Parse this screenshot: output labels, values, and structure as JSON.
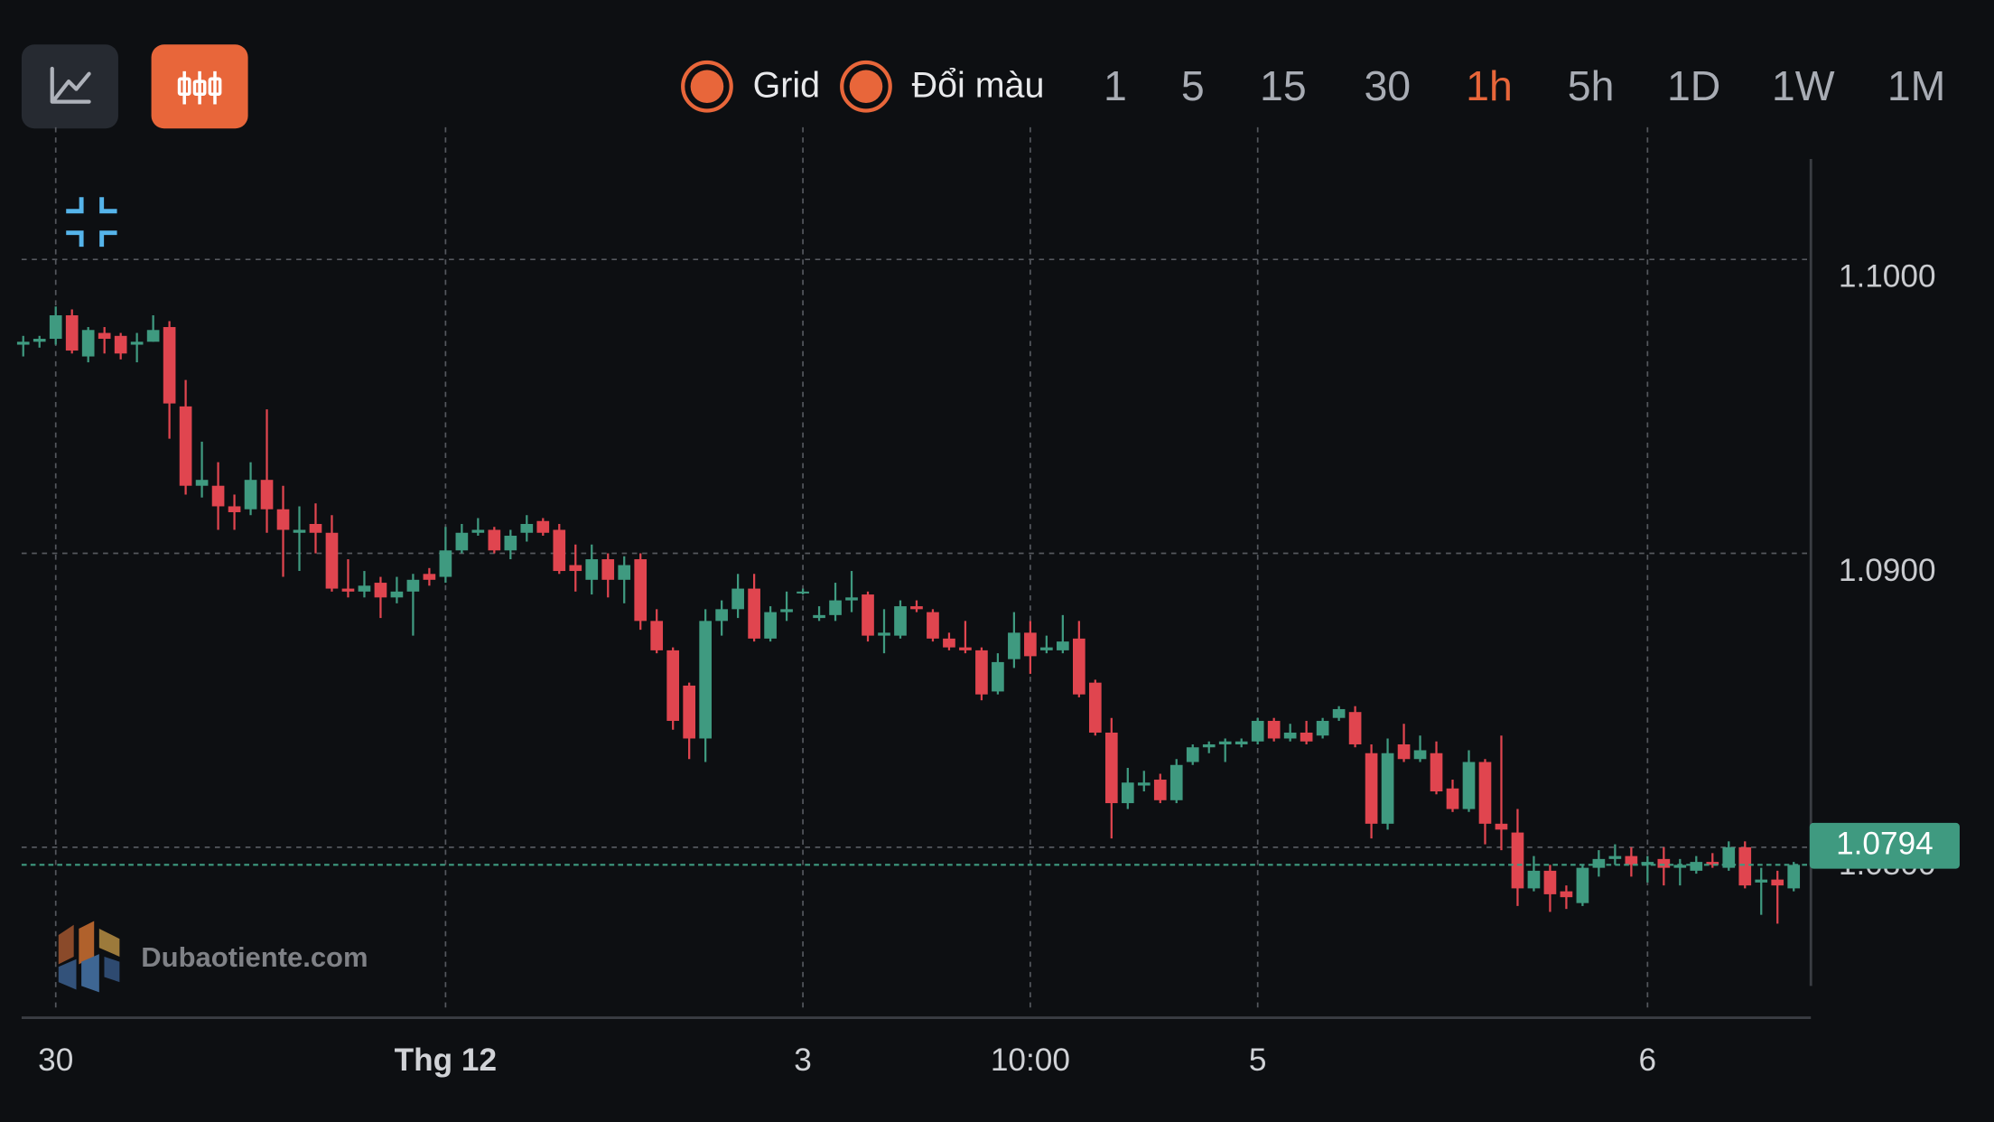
{
  "toolbar": {
    "toggles": [
      "Grid",
      "Đổi màu"
    ],
    "timeframes": [
      "1",
      "5",
      "15",
      "30",
      "1h",
      "5h",
      "1D",
      "1W",
      "1M"
    ],
    "active_timeframe": 4,
    "accent_color": "#e8663a"
  },
  "watermark": "Dubaotiente.com",
  "chart_data": {
    "type": "candlestick",
    "categories": [
      null,
      null,
      "30",
      null,
      null,
      null,
      null,
      null,
      null,
      null,
      null,
      null,
      null,
      null,
      null,
      null,
      null,
      null,
      null,
      null,
      null,
      null,
      null,
      null,
      null,
      null,
      "Thg 12",
      null,
      null,
      null,
      null,
      null,
      null,
      null,
      null,
      null,
      null,
      null,
      null,
      null,
      null,
      null,
      null,
      null,
      null,
      null,
      null,
      null,
      "3",
      null,
      null,
      null,
      null,
      null,
      null,
      null,
      null,
      null,
      null,
      null,
      null,
      null,
      "10:00",
      null,
      null,
      null,
      null,
      null,
      null,
      null,
      null,
      null,
      null,
      null,
      null,
      null,
      "5",
      null,
      null,
      null,
      null,
      null,
      null,
      null,
      null,
      null,
      null,
      null,
      null,
      null,
      null,
      null,
      null,
      null,
      null,
      null,
      null,
      null,
      null,
      null,
      "6",
      null,
      null,
      null,
      null,
      null,
      null,
      null,
      null,
      null
    ],
    "open": [
      1.0971,
      1.0972,
      1.0973,
      1.0981,
      1.0967,
      1.0975,
      1.0974,
      1.0971,
      1.0972,
      1.0977,
      1.095,
      1.0923,
      1.0923,
      1.0916,
      1.0915,
      1.0925,
      1.0915,
      1.0907,
      1.091,
      1.0907,
      1.0888,
      1.0887,
      1.089,
      1.0885,
      1.0887,
      1.0893,
      1.0892,
      1.0901,
      1.0907,
      1.0908,
      1.0901,
      1.0907,
      1.0911,
      1.0908,
      1.0896,
      1.0891,
      1.0898,
      1.0891,
      1.0898,
      1.0877,
      1.0867,
      1.0855,
      1.0837,
      1.0877,
      1.0881,
      1.0888,
      1.0871,
      1.088,
      1.0887,
      1.0878,
      1.0879,
      1.0884,
      1.0886,
      1.0872,
      1.0872,
      1.0882,
      1.088,
      1.0871,
      1.0868,
      1.0867,
      1.0853,
      1.0864,
      1.0873,
      1.0867,
      1.0867,
      1.0871,
      1.0856,
      1.0839,
      1.0815,
      1.0821,
      1.0823,
      1.0816,
      1.0829,
      1.0834,
      1.0835,
      1.0835,
      1.0836,
      1.0843,
      1.0837,
      1.0839,
      1.0838,
      1.0844,
      1.0846,
      1.0832,
      1.0808,
      1.0835,
      1.083,
      1.0832,
      1.082,
      1.0813,
      1.0829,
      1.0808,
      1.0805,
      1.0786,
      1.0792,
      1.0785,
      1.0781,
      1.0793,
      1.0796,
      1.0797,
      1.0794,
      1.0796,
      1.0793,
      1.0792,
      1.0795,
      1.0793,
      1.08,
      1.0788,
      1.0789,
      1.0786
    ],
    "high": [
      1.0974,
      1.0974,
      1.0984,
      1.0983,
      1.0977,
      1.0977,
      1.0975,
      1.0975,
      1.0981,
      1.0979,
      1.0959,
      1.0938,
      1.0931,
      1.092,
      1.0931,
      1.0949,
      1.0923,
      1.0916,
      1.0917,
      1.0913,
      1.0898,
      1.0894,
      1.0892,
      1.0892,
      1.0893,
      1.0895,
      1.0909,
      1.091,
      1.0912,
      1.0909,
      1.0908,
      1.0913,
      1.0912,
      1.091,
      1.0903,
      1.0903,
      1.09,
      1.0899,
      1.09,
      1.0881,
      1.0868,
      1.0856,
      1.0881,
      1.0884,
      1.0893,
      1.0893,
      1.0882,
      1.0887,
      1.0888,
      1.0882,
      1.089,
      1.0894,
      1.0887,
      1.0881,
      1.0884,
      1.0884,
      1.0881,
      1.0873,
      1.0877,
      1.0868,
      1.0866,
      1.088,
      1.0877,
      1.0872,
      1.0879,
      1.0877,
      1.0857,
      1.0844,
      1.0827,
      1.0826,
      1.0825,
      1.083,
      1.0835,
      1.0836,
      1.0837,
      1.0837,
      1.0844,
      1.0844,
      1.0842,
      1.0843,
      1.0844,
      1.0848,
      1.0848,
      1.0835,
      1.0837,
      1.0842,
      1.0838,
      1.0836,
      1.0823,
      1.0833,
      1.083,
      1.0838,
      1.0813,
      1.0797,
      1.0794,
      1.0787,
      1.0794,
      1.0799,
      1.0801,
      1.08,
      1.0797,
      1.08,
      1.0796,
      1.0797,
      1.0798,
      1.0802,
      1.0802,
      1.0793,
      1.0792,
      1.0795
    ],
    "low": [
      1.0967,
      1.097,
      1.0971,
      1.0968,
      1.0965,
      1.0968,
      1.0966,
      1.0965,
      1.0972,
      1.0939,
      1.092,
      1.0919,
      1.0908,
      1.0908,
      1.0913,
      1.0907,
      1.0892,
      1.0894,
      1.09,
      1.0887,
      1.0885,
      1.0885,
      1.0878,
      1.0883,
      1.0872,
      1.0889,
      1.089,
      1.09,
      1.0906,
      1.09,
      1.0898,
      1.0904,
      1.0906,
      1.0893,
      1.0887,
      1.0886,
      1.0885,
      1.0883,
      1.0874,
      1.0866,
      1.084,
      1.083,
      1.0829,
      1.0872,
      1.0878,
      1.087,
      1.087,
      1.0877,
      1.0886,
      1.0877,
      1.0877,
      1.088,
      1.087,
      1.0866,
      1.0871,
      1.088,
      1.087,
      1.0867,
      1.0866,
      1.085,
      1.0852,
      1.0861,
      1.0859,
      1.0866,
      1.0866,
      1.0851,
      1.0838,
      1.0803,
      1.0813,
      1.0819,
      1.0815,
      1.0815,
      1.0828,
      1.0832,
      1.0829,
      1.0834,
      1.0835,
      1.0836,
      1.0836,
      1.0835,
      1.0837,
      1.0843,
      1.0834,
      1.0803,
      1.0806,
      1.0829,
      1.0829,
      1.0818,
      1.0812,
      1.0812,
      1.0801,
      1.0799,
      1.078,
      1.0785,
      1.0778,
      1.0779,
      1.078,
      1.079,
      1.0794,
      1.079,
      1.0788,
      1.0787,
      1.0787,
      1.0791,
      1.0793,
      1.0792,
      1.0786,
      1.0777,
      1.0774,
      1.0785
    ],
    "close": [
      1.0972,
      1.0973,
      1.0981,
      1.0969,
      1.0976,
      1.0973,
      1.0968,
      1.0972,
      1.0976,
      1.0951,
      1.0923,
      1.0925,
      1.0916,
      1.0914,
      1.0925,
      1.0915,
      1.0908,
      1.0908,
      1.0907,
      1.0888,
      1.0887,
      1.0889,
      1.0885,
      1.0887,
      1.0891,
      1.0891,
      1.0901,
      1.0907,
      1.0908,
      1.0901,
      1.0906,
      1.091,
      1.0907,
      1.0894,
      1.0894,
      1.0898,
      1.0891,
      1.0896,
      1.0877,
      1.0867,
      1.0843,
      1.0837,
      1.0877,
      1.0881,
      1.0888,
      1.0871,
      1.088,
      1.0881,
      1.0887,
      1.0879,
      1.0884,
      1.0885,
      1.0872,
      1.0873,
      1.0882,
      1.0881,
      1.0871,
      1.0868,
      1.0867,
      1.0852,
      1.0863,
      1.0873,
      1.0865,
      1.0868,
      1.087,
      1.0852,
      1.0839,
      1.0815,
      1.0822,
      1.0822,
      1.0816,
      1.0828,
      1.0834,
      1.0835,
      1.0836,
      1.0836,
      1.0843,
      1.0837,
      1.0839,
      1.0836,
      1.0843,
      1.0847,
      1.0835,
      1.0808,
      1.0832,
      1.083,
      1.0833,
      1.0819,
      1.0813,
      1.0829,
      1.0808,
      1.0806,
      1.0786,
      1.0792,
      1.0784,
      1.0783,
      1.0793,
      1.0796,
      1.0797,
      1.0794,
      1.0795,
      1.0793,
      1.0794,
      1.0795,
      1.0794,
      1.08,
      1.0787,
      1.0789,
      1.0787,
      1.0794
    ],
    "up_color": "#3f9a80",
    "down_color": "#e0454f",
    "ylim": [
      1.0742,
      1.1045
    ],
    "yticks": [
      {
        "value": 1.08,
        "label": "1.0800"
      },
      {
        "value": 1.09,
        "label": "1.0900"
      },
      {
        "value": 1.1,
        "label": "1.1000"
      }
    ],
    "grid": true,
    "current_price": 1.0794
  }
}
